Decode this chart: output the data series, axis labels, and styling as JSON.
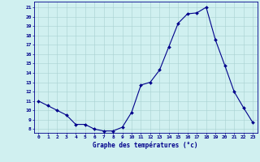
{
  "title": "Graphe des températures (°c)",
  "hours": [
    0,
    1,
    2,
    3,
    4,
    5,
    6,
    7,
    8,
    9,
    10,
    11,
    12,
    13,
    14,
    15,
    16,
    17,
    18,
    19,
    20,
    21,
    22,
    23
  ],
  "temps": [
    11.0,
    10.5,
    10.0,
    9.5,
    8.5,
    8.5,
    8.0,
    7.8,
    7.8,
    8.2,
    9.8,
    12.7,
    13.0,
    14.3,
    16.8,
    19.3,
    20.3,
    20.4,
    21.0,
    17.5,
    14.8,
    12.0,
    10.3,
    8.7
  ],
  "line_color": "#00008B",
  "marker": "D",
  "marker_size": 2.0,
  "bg_color": "#D0F0F0",
  "grid_color": "#A8D0D0",
  "axis_color": "#00008B",
  "tick_color": "#00008B",
  "ylim": [
    7.6,
    21.6
  ],
  "yticks": [
    8,
    9,
    10,
    11,
    12,
    13,
    14,
    15,
    16,
    17,
    18,
    19,
    20,
    21
  ],
  "xlim": [
    -0.5,
    23.5
  ],
  "xticks": [
    0,
    1,
    2,
    3,
    4,
    5,
    6,
    7,
    8,
    9,
    10,
    11,
    12,
    13,
    14,
    15,
    16,
    17,
    18,
    19,
    20,
    21,
    22,
    23
  ],
  "xlabel_fontsize": 5.5,
  "tick_fontsize": 4.5,
  "linewidth": 0.8
}
